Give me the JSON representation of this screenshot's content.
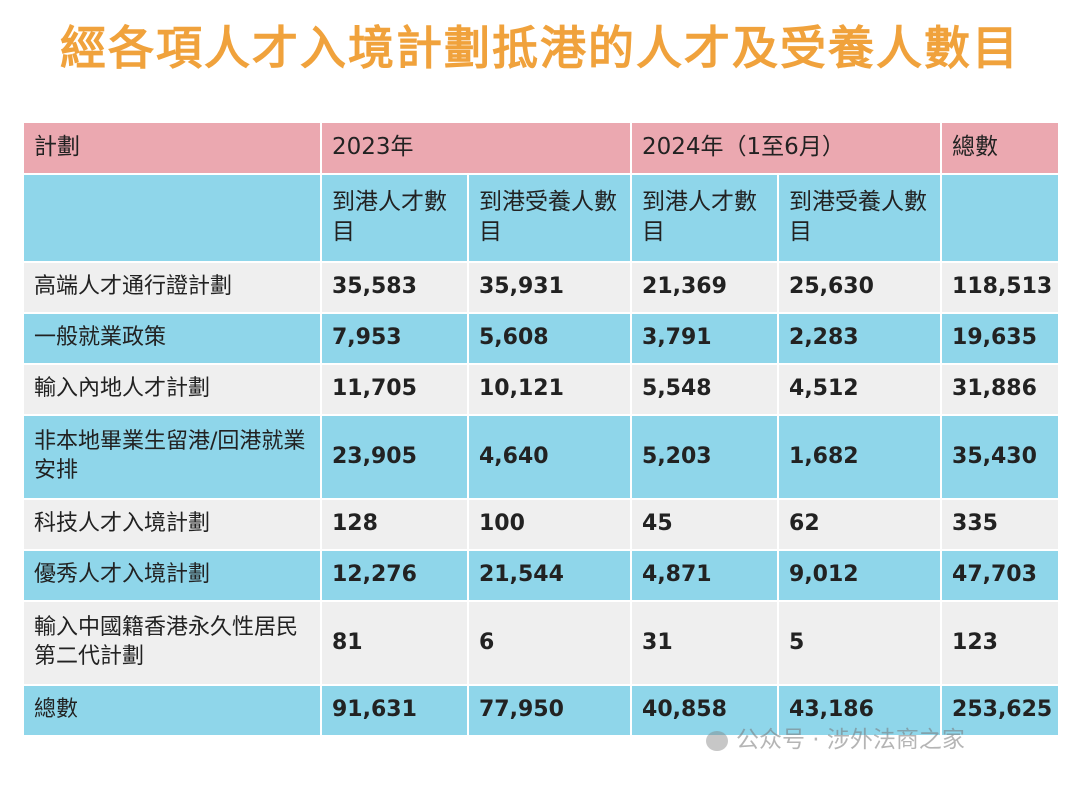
{
  "title": "經各項人才入境計劃抵港的人才及受養人數目",
  "header": {
    "plan": "計劃",
    "y2023": "2023年",
    "y2024": "2024年（1至6月）",
    "total": "總數"
  },
  "subheader": {
    "talent_arrivals": "到港人才數目",
    "dependant_arrivals": "到港受養人數目"
  },
  "rows": [
    {
      "plan": "高端人才通行證計劃",
      "a2023": "35,583",
      "d2023": "35,931",
      "a2024": "21,369",
      "d2024": "25,630",
      "total": "118,513"
    },
    {
      "plan": "一般就業政策",
      "a2023": "7,953",
      "d2023": "5,608",
      "a2024": "3,791",
      "d2024": "2,283",
      "total": "19,635"
    },
    {
      "plan": "輸入內地人才計劃",
      "a2023": "11,705",
      "d2023": "10,121",
      "a2024": "5,548",
      "d2024": "4,512",
      "total": "31,886"
    },
    {
      "plan": "非本地畢業生留港/回港就業安排",
      "a2023": "23,905",
      "d2023": "4,640",
      "a2024": "5,203",
      "d2024": "1,682",
      "total": "35,430"
    },
    {
      "plan": "科技人才入境計劃",
      "a2023": "128",
      "d2023": "100",
      "a2024": "45",
      "d2024": "62",
      "total": "335"
    },
    {
      "plan": "優秀人才入境計劃",
      "a2023": "12,276",
      "d2023": "21,544",
      "a2024": "4,871",
      "d2024": "9,012",
      "total": "47,703"
    },
    {
      "plan": "輸入中國籍香港永久性居民第二代計劃",
      "a2023": "81",
      "d2023": "6",
      "a2024": "31",
      "d2024": "5",
      "total": "123"
    },
    {
      "plan": "總數",
      "a2023": "91,631",
      "d2023": "77,950",
      "a2024": "40,858",
      "d2024": "43,186",
      "total": "253,625"
    }
  ],
  "watermark": "公众号 · 涉外法商之家",
  "colors": {
    "title": "#F0A23C",
    "header_pink": "#EBA8B0",
    "row_blue": "#8FD6EA",
    "row_gray": "#EFEFEF"
  }
}
